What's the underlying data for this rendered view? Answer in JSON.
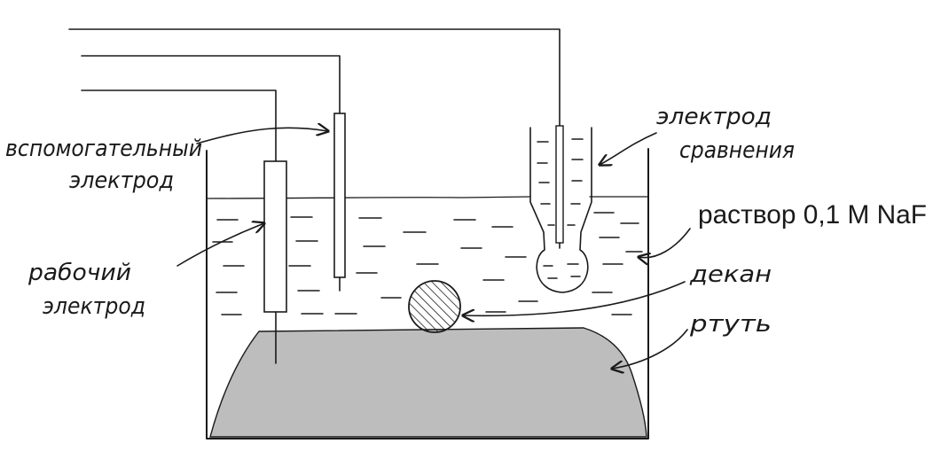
{
  "labels": {
    "auxiliary_electrode": [
      "вспомогательный",
      "электрод"
    ],
    "reference_electrode": [
      "электрод",
      "сравнения"
    ],
    "working_electrode": [
      "рабочий",
      "электрод"
    ],
    "solution": "раствор 0,1 M NaF",
    "decane": "декан",
    "mercury": "ртуть"
  },
  "colors": {
    "ink": "#1a1a1a",
    "mercury": "#bdbdbd",
    "background": "#ffffff"
  }
}
